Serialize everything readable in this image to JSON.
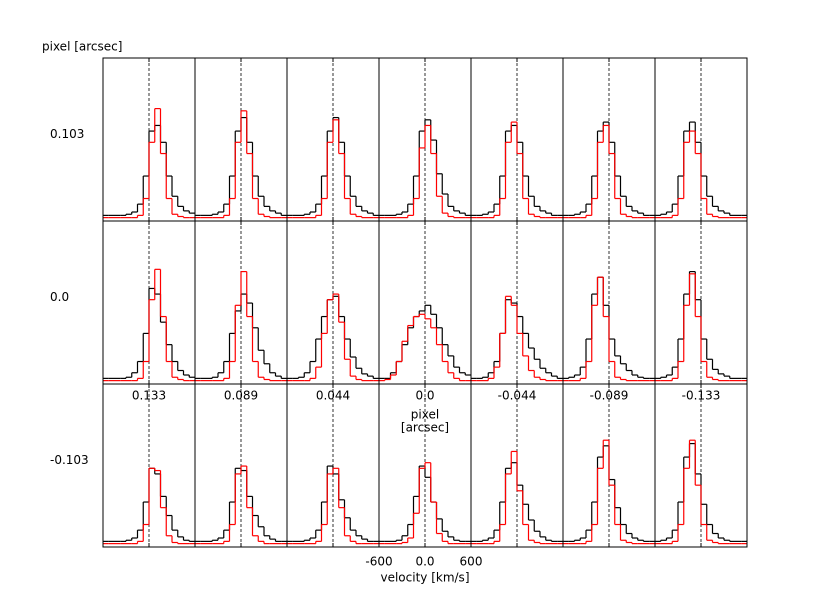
{
  "chart_data": {
    "type": "step_grid",
    "row_axis_label": "pixel [arcsec]",
    "rows": [
      "0.103",
      "0.0",
      "-0.103"
    ],
    "columns": [
      "0.133",
      "0.089",
      "0.044",
      "0.0",
      "-0.044",
      "-0.089",
      "-0.133"
    ],
    "col_axis_label": [
      "pixel",
      "[arcsec]"
    ],
    "xlabel": "velocity [km/s]",
    "xlim": [
      -600,
      600
    ],
    "xticks": [
      -600,
      {
        "value": 0,
        "label": "0.0"
      },
      600
    ],
    "vline": 0,
    "ylim": [
      0,
      1.45
    ],
    "bins": [
      -600,
      -525,
      -450,
      -375,
      -300,
      -225,
      -150,
      -75,
      0,
      75,
      150,
      225,
      300,
      375,
      450,
      525,
      600
    ],
    "series": [
      {
        "color": "#000000",
        "panels": [
          [
            0.05,
            0.05,
            0.05,
            0.05,
            0.06,
            0.08,
            0.15,
            0.4,
            0.8,
            0.85,
            0.7,
            0.4,
            0.22,
            0.13,
            0.09,
            0.07
          ],
          [
            0.05,
            0.05,
            0.05,
            0.06,
            0.08,
            0.15,
            0.4,
            0.8,
            0.92,
            0.7,
            0.4,
            0.22,
            0.13,
            0.09,
            0.07,
            0.05
          ],
          [
            0.05,
            0.05,
            0.05,
            0.06,
            0.08,
            0.15,
            0.4,
            0.8,
            0.92,
            0.7,
            0.4,
            0.22,
            0.13,
            0.09,
            0.07,
            0.05
          ],
          [
            0.05,
            0.05,
            0.05,
            0.06,
            0.08,
            0.15,
            0.4,
            0.8,
            0.9,
            0.72,
            0.42,
            0.24,
            0.13,
            0.09,
            0.07,
            0.05
          ],
          [
            0.05,
            0.05,
            0.06,
            0.08,
            0.15,
            0.4,
            0.8,
            0.85,
            0.7,
            0.4,
            0.22,
            0.13,
            0.09,
            0.07,
            0.05,
            0.05
          ],
          [
            0.05,
            0.05,
            0.06,
            0.08,
            0.15,
            0.4,
            0.8,
            0.88,
            0.7,
            0.4,
            0.22,
            0.13,
            0.09,
            0.07,
            0.05,
            0.05
          ],
          [
            0.05,
            0.06,
            0.08,
            0.15,
            0.4,
            0.8,
            0.88,
            0.7,
            0.4,
            0.22,
            0.13,
            0.09,
            0.07,
            0.05,
            0.05,
            0.05
          ],
          [
            0.05,
            0.05,
            0.05,
            0.05,
            0.06,
            0.1,
            0.2,
            0.45,
            0.85,
            0.8,
            0.55,
            0.35,
            0.2,
            0.12,
            0.08,
            0.06
          ],
          [
            0.05,
            0.05,
            0.05,
            0.06,
            0.1,
            0.2,
            0.45,
            0.65,
            0.8,
            0.72,
            0.5,
            0.3,
            0.18,
            0.1,
            0.07,
            0.05
          ],
          [
            0.05,
            0.05,
            0.06,
            0.1,
            0.2,
            0.4,
            0.6,
            0.75,
            0.78,
            0.6,
            0.4,
            0.24,
            0.14,
            0.09,
            0.07,
            0.05
          ],
          [
            0.05,
            0.05,
            0.1,
            0.2,
            0.35,
            0.5,
            0.6,
            0.65,
            0.7,
            0.62,
            0.5,
            0.35,
            0.25,
            0.15,
            0.1,
            0.08
          ],
          [
            0.05,
            0.05,
            0.06,
            0.1,
            0.2,
            0.45,
            0.75,
            0.72,
            0.6,
            0.45,
            0.32,
            0.22,
            0.14,
            0.1,
            0.07,
            0.05
          ],
          [
            0.05,
            0.06,
            0.08,
            0.15,
            0.4,
            0.8,
            0.95,
            0.7,
            0.4,
            0.25,
            0.18,
            0.12,
            0.08,
            0.06,
            0.05,
            0.05
          ],
          [
            0.05,
            0.06,
            0.08,
            0.15,
            0.4,
            0.8,
            1.0,
            0.75,
            0.4,
            0.22,
            0.13,
            0.09,
            0.07,
            0.05,
            0.05,
            0.05
          ],
          [
            0.05,
            0.05,
            0.05,
            0.05,
            0.06,
            0.08,
            0.15,
            0.4,
            0.7,
            0.65,
            0.45,
            0.28,
            0.15,
            0.09,
            0.06,
            0.05
          ],
          [
            0.05,
            0.05,
            0.05,
            0.06,
            0.08,
            0.15,
            0.4,
            0.7,
            0.68,
            0.45,
            0.28,
            0.18,
            0.1,
            0.07,
            0.05,
            0.05
          ],
          [
            0.05,
            0.05,
            0.05,
            0.06,
            0.08,
            0.15,
            0.4,
            0.72,
            0.65,
            0.42,
            0.26,
            0.15,
            0.1,
            0.07,
            0.05,
            0.05
          ],
          [
            0.05,
            0.05,
            0.05,
            0.06,
            0.1,
            0.2,
            0.45,
            0.72,
            0.62,
            0.4,
            0.25,
            0.14,
            0.09,
            0.06,
            0.05,
            0.05
          ],
          [
            0.05,
            0.05,
            0.06,
            0.08,
            0.15,
            0.4,
            0.7,
            0.75,
            0.55,
            0.38,
            0.24,
            0.14,
            0.09,
            0.06,
            0.05,
            0.05
          ],
          [
            0.05,
            0.05,
            0.06,
            0.08,
            0.15,
            0.4,
            0.8,
            0.9,
            0.6,
            0.35,
            0.2,
            0.12,
            0.08,
            0.06,
            0.05,
            0.05
          ],
          [
            0.05,
            0.06,
            0.08,
            0.15,
            0.4,
            0.8,
            0.92,
            0.65,
            0.38,
            0.2,
            0.12,
            0.08,
            0.06,
            0.05,
            0.05,
            0.05
          ]
        ]
      },
      {
        "color": "#ff0000",
        "panels": [
          [
            0.03,
            0.03,
            0.03,
            0.03,
            0.03,
            0.03,
            0.05,
            0.2,
            0.7,
            1.0,
            0.6,
            0.2,
            0.06,
            0.04,
            0.03,
            0.03
          ],
          [
            0.03,
            0.03,
            0.03,
            0.03,
            0.03,
            0.05,
            0.2,
            0.7,
            0.98,
            0.6,
            0.2,
            0.06,
            0.04,
            0.03,
            0.03,
            0.03
          ],
          [
            0.03,
            0.03,
            0.03,
            0.03,
            0.03,
            0.05,
            0.2,
            0.7,
            0.9,
            0.6,
            0.2,
            0.06,
            0.04,
            0.03,
            0.03,
            0.03
          ],
          [
            0.03,
            0.03,
            0.03,
            0.03,
            0.03,
            0.05,
            0.2,
            0.65,
            0.85,
            0.6,
            0.22,
            0.07,
            0.04,
            0.03,
            0.03,
            0.03
          ],
          [
            0.03,
            0.03,
            0.03,
            0.03,
            0.05,
            0.2,
            0.7,
            0.88,
            0.6,
            0.2,
            0.06,
            0.04,
            0.03,
            0.03,
            0.03,
            0.03
          ],
          [
            0.03,
            0.03,
            0.03,
            0.03,
            0.05,
            0.2,
            0.7,
            0.85,
            0.6,
            0.2,
            0.06,
            0.04,
            0.03,
            0.03,
            0.03,
            0.03
          ],
          [
            0.03,
            0.03,
            0.03,
            0.05,
            0.2,
            0.7,
            0.8,
            0.6,
            0.2,
            0.06,
            0.04,
            0.03,
            0.03,
            0.03,
            0.03,
            0.03
          ],
          [
            0.03,
            0.03,
            0.03,
            0.03,
            0.03,
            0.03,
            0.05,
            0.2,
            0.75,
            1.02,
            0.6,
            0.2,
            0.06,
            0.04,
            0.03,
            0.03
          ],
          [
            0.03,
            0.03,
            0.03,
            0.03,
            0.03,
            0.05,
            0.2,
            0.7,
            1.0,
            0.6,
            0.2,
            0.06,
            0.04,
            0.03,
            0.03,
            0.03
          ],
          [
            0.03,
            0.03,
            0.03,
            0.03,
            0.05,
            0.15,
            0.45,
            0.75,
            0.8,
            0.55,
            0.22,
            0.07,
            0.04,
            0.03,
            0.03,
            0.03
          ],
          [
            0.03,
            0.04,
            0.08,
            0.2,
            0.38,
            0.52,
            0.6,
            0.62,
            0.58,
            0.5,
            0.35,
            0.2,
            0.1,
            0.05,
            0.03,
            0.03
          ],
          [
            0.03,
            0.03,
            0.03,
            0.05,
            0.15,
            0.45,
            0.78,
            0.7,
            0.45,
            0.25,
            0.12,
            0.06,
            0.04,
            0.03,
            0.03,
            0.03
          ],
          [
            0.03,
            0.03,
            0.03,
            0.05,
            0.2,
            0.7,
            0.95,
            0.6,
            0.2,
            0.06,
            0.04,
            0.03,
            0.03,
            0.03,
            0.03,
            0.03
          ],
          [
            0.03,
            0.03,
            0.03,
            0.05,
            0.2,
            0.7,
            0.98,
            0.6,
            0.2,
            0.06,
            0.04,
            0.03,
            0.03,
            0.03,
            0.03,
            0.03
          ],
          [
            0.03,
            0.03,
            0.03,
            0.03,
            0.03,
            0.03,
            0.05,
            0.2,
            0.7,
            0.68,
            0.35,
            0.1,
            0.04,
            0.03,
            0.03,
            0.03
          ],
          [
            0.03,
            0.03,
            0.03,
            0.03,
            0.03,
            0.05,
            0.2,
            0.65,
            0.72,
            0.35,
            0.1,
            0.05,
            0.03,
            0.03,
            0.03,
            0.03
          ],
          [
            0.03,
            0.03,
            0.03,
            0.03,
            0.03,
            0.05,
            0.2,
            0.65,
            0.7,
            0.35,
            0.1,
            0.05,
            0.03,
            0.03,
            0.03,
            0.03
          ],
          [
            0.03,
            0.03,
            0.03,
            0.03,
            0.04,
            0.08,
            0.3,
            0.7,
            0.75,
            0.4,
            0.12,
            0.05,
            0.03,
            0.03,
            0.03,
            0.03
          ],
          [
            0.03,
            0.03,
            0.03,
            0.03,
            0.05,
            0.2,
            0.65,
            0.85,
            0.5,
            0.2,
            0.06,
            0.04,
            0.03,
            0.03,
            0.03,
            0.03
          ],
          [
            0.03,
            0.03,
            0.03,
            0.03,
            0.05,
            0.2,
            0.7,
            0.95,
            0.55,
            0.2,
            0.06,
            0.04,
            0.03,
            0.03,
            0.03,
            0.03
          ],
          [
            0.03,
            0.03,
            0.03,
            0.05,
            0.2,
            0.7,
            0.95,
            0.55,
            0.2,
            0.06,
            0.04,
            0.03,
            0.03,
            0.03,
            0.03,
            0.03
          ]
        ]
      }
    ]
  }
}
